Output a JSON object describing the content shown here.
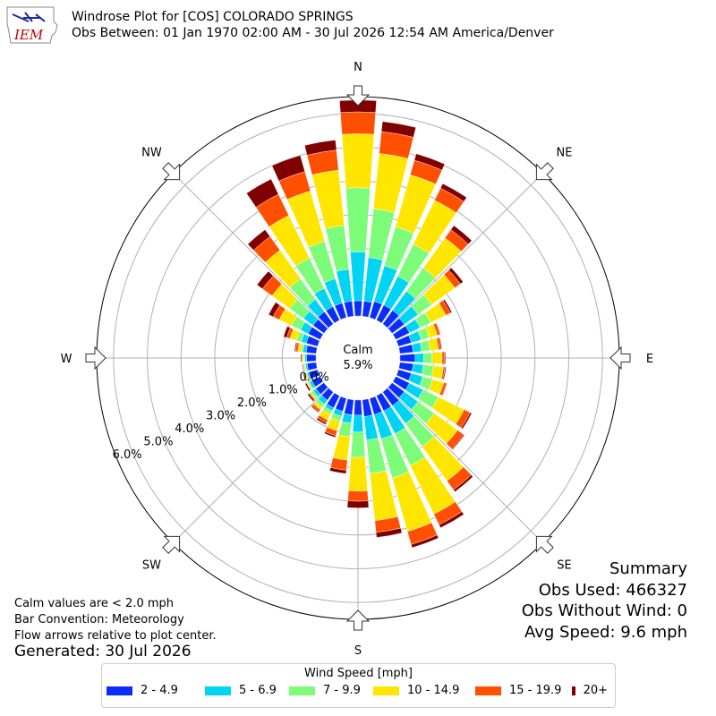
{
  "logo": {
    "text": "IEM"
  },
  "title": {
    "line1": "Windrose Plot for [COS] COLORADO SPRINGS",
    "line2": "Obs Between: 01 Jan 1970 02:00 AM - 30 Jul 2026 12:54 AM America/Denver"
  },
  "notes": {
    "calm": "Calm values are < 2.0 mph",
    "convention": "Bar Convention: Meteorology",
    "flow": "Flow arrows relative to plot center.",
    "generated": "Generated: 30 Jul 2026"
  },
  "summary": {
    "title": "Summary",
    "obs_used": "Obs Used: 466327",
    "obs_without_wind": "Obs Without Wind: 0",
    "avg_speed": "Avg Speed: 9.6 mph"
  },
  "center": {
    "label": "Calm",
    "value": "5.9%"
  },
  "legend": {
    "title": "Wind Speed [mph]",
    "items": [
      {
        "label": "2 - 4.9",
        "color": "#0a2dfa"
      },
      {
        "label": "5 - 6.9",
        "color": "#00d4f4"
      },
      {
        "label": "7 - 9.9",
        "color": "#7dfc7a"
      },
      {
        "label": "10 - 14.9",
        "color": "#ffe600"
      },
      {
        "label": "15 - 19.9",
        "color": "#ff4f00"
      },
      {
        "label": "20+",
        "color": "#800000"
      }
    ]
  },
  "chart_data": {
    "type": "windrose",
    "units": "percent of observations",
    "calm_percent": 5.9,
    "rlim": [
      0,
      6.5
    ],
    "ring_ticks": [
      0,
      1,
      2,
      3,
      4,
      5,
      6
    ],
    "ring_labels": [
      "0.0%",
      "1.0%",
      "2.0%",
      "3.0%",
      "4.0%",
      "5.0%",
      "6.0%"
    ],
    "cardinal_labels": [
      "N",
      "NE",
      "E",
      "SE",
      "S",
      "SW",
      "W",
      "NW"
    ],
    "grid": true,
    "bar_convention": "meteorology",
    "bins": [
      "2 - 4.9",
      "5 - 6.9",
      "7 - 9.9",
      "10 - 14.9",
      "15 - 19.9",
      "20+"
    ],
    "directions_deg": [
      0,
      10,
      20,
      30,
      40,
      50,
      60,
      70,
      80,
      90,
      100,
      110,
      120,
      130,
      140,
      150,
      160,
      170,
      180,
      190,
      200,
      210,
      220,
      230,
      240,
      250,
      260,
      270,
      280,
      290,
      300,
      310,
      320,
      330,
      340,
      350
    ],
    "cumulative_percent": [
      [
        0.45,
        1.9,
        3.8,
        5.4,
        6.05,
        6.4
      ],
      [
        0.45,
        1.75,
        3.2,
        4.85,
        5.5,
        5.8
      ],
      [
        0.5,
        1.6,
        2.8,
        4.4,
        4.85,
        5.05
      ],
      [
        0.5,
        1.45,
        2.5,
        3.95,
        4.35,
        4.5
      ],
      [
        0.5,
        1.2,
        2.05,
        3.15,
        3.45,
        3.6
      ],
      [
        0.45,
        0.95,
        1.45,
        2.3,
        2.5,
        2.6
      ],
      [
        0.45,
        0.8,
        1.15,
        1.65,
        1.8,
        1.85
      ],
      [
        0.4,
        0.7,
        0.95,
        1.2,
        1.28,
        1.3
      ],
      [
        0.4,
        0.65,
        0.9,
        1.15,
        1.22,
        1.25
      ],
      [
        0.45,
        0.7,
        0.95,
        1.25,
        1.32,
        1.35
      ],
      [
        0.4,
        0.7,
        1.0,
        1.3,
        1.35,
        1.38
      ],
      [
        0.4,
        0.75,
        1.05,
        1.4,
        1.48,
        1.5
      ],
      [
        0.45,
        0.9,
        1.4,
        2.25,
        2.45,
        2.5
      ],
      [
        0.45,
        0.95,
        1.55,
        2.4,
        2.62,
        2.65
      ],
      [
        0.5,
        1.15,
        2.0,
        3.25,
        3.58,
        3.65
      ],
      [
        0.5,
        1.25,
        2.3,
        3.9,
        4.25,
        4.35
      ],
      [
        0.5,
        1.25,
        2.45,
        4.1,
        4.5,
        4.6
      ],
      [
        0.5,
        1.2,
        2.2,
        3.6,
        3.95,
        4.1
      ],
      [
        0.45,
        0.95,
        1.7,
        2.7,
        3.0,
        3.2
      ],
      [
        0.45,
        0.7,
        1.1,
        1.8,
        2.1,
        2.2
      ],
      [
        0.4,
        0.55,
        0.7,
        1.0,
        1.15,
        1.2
      ],
      [
        0.4,
        0.5,
        0.6,
        0.8,
        0.9,
        0.95
      ],
      [
        0.3,
        0.45,
        0.55,
        0.65,
        0.72,
        0.75
      ],
      [
        0.3,
        0.4,
        0.48,
        0.52,
        0.55,
        0.6
      ],
      [
        0.28,
        0.36,
        0.4,
        0.44,
        0.45,
        0.5
      ],
      [
        0.28,
        0.33,
        0.36,
        0.4,
        0.42,
        0.45
      ],
      [
        0.27,
        0.32,
        0.35,
        0.38,
        0.4,
        0.42
      ],
      [
        0.28,
        0.33,
        0.36,
        0.4,
        0.42,
        0.45
      ],
      [
        0.3,
        0.4,
        0.45,
        0.55,
        0.62,
        0.65
      ],
      [
        0.35,
        0.5,
        0.65,
        0.85,
        0.95,
        1.05
      ],
      [
        0.4,
        0.65,
        0.95,
        1.35,
        1.55,
        1.7
      ],
      [
        0.4,
        0.75,
        1.25,
        1.9,
        2.25,
        2.45
      ],
      [
        0.45,
        0.9,
        1.65,
        2.7,
        3.2,
        3.45
      ],
      [
        0.45,
        1.05,
        2.05,
        3.45,
        4.15,
        4.65
      ],
      [
        0.45,
        1.2,
        2.35,
        3.9,
        4.5,
        5.0
      ],
      [
        0.45,
        1.4,
        2.7,
        4.35,
        4.95,
        5.25
      ]
    ]
  }
}
